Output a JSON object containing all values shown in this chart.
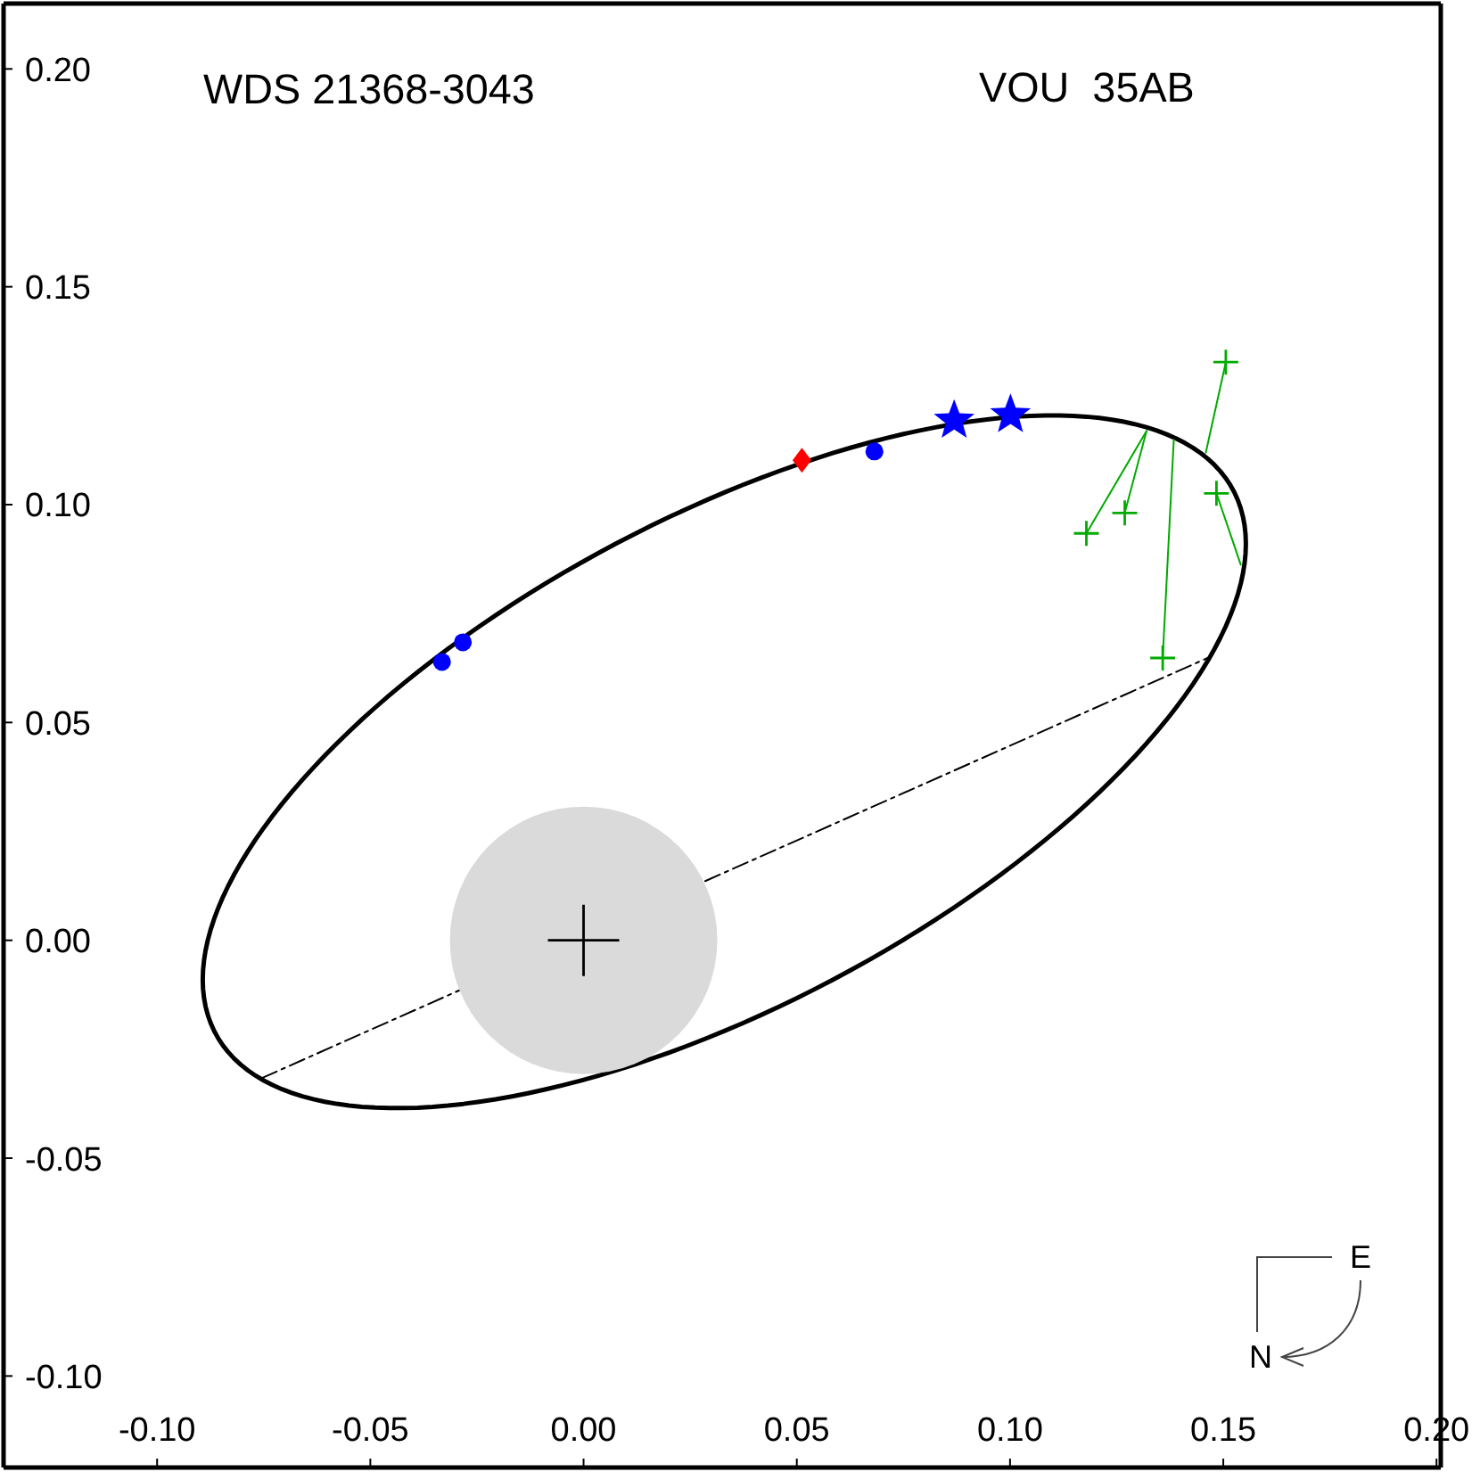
{
  "chart_data": {
    "type": "scatter",
    "title": "WDS 21368-3043",
    "subtitle": "VOU  35AB",
    "annotations": [
      "E",
      "N"
    ],
    "xlim": [
      -0.136,
      0.201
    ],
    "ylim": [
      -0.121,
      0.215
    ],
    "xticks": [
      {
        "value": -0.1,
        "label": "-0.10"
      },
      {
        "value": -0.05,
        "label": "-0.05"
      },
      {
        "value": 0,
        "label": "0.00"
      },
      {
        "value": 0.05,
        "label": "0.05"
      },
      {
        "value": 0.1,
        "label": "0.10"
      },
      {
        "value": 0.15,
        "label": "0.15"
      },
      {
        "value": 0.2,
        "label": "0.20"
      }
    ],
    "yticks": [
      {
        "value": -0.1,
        "label": "-0.10"
      },
      {
        "value": -0.05,
        "label": "-0.05"
      },
      {
        "value": 0,
        "label": "0.00"
      },
      {
        "value": 0.05,
        "label": "0.05"
      },
      {
        "value": 0.1,
        "label": "0.10"
      },
      {
        "value": 0.15,
        "label": "0.15"
      },
      {
        "value": 0.2,
        "label": "0.20"
      }
    ],
    "series": [
      {
        "type": "bubble",
        "color": "#dadada",
        "x": [
          0
        ],
        "values": [
          0
        ],
        "sizes": [
          1
        ]
      },
      {
        "type": "line",
        "color": "#000000",
        "marker": "none",
        "line_style": "dashdot",
        "x": [
          -0.0754,
          0.1463
        ],
        "values": [
          -0.0316,
          0.0648
        ]
      },
      {
        "type": "scatter",
        "color": "#000000",
        "marker": "cross",
        "x": [
          0
        ],
        "values": [
          0
        ]
      },
      {
        "type": "line",
        "color": "#00aa00",
        "marker": "none",
        "line_style": "solid",
        "x": [
          0.1179,
          0.132
        ],
        "values": [
          0.0934,
          0.1169
        ]
      },
      {
        "type": "line",
        "color": "#00aa00",
        "marker": "none",
        "line_style": "solid",
        "x": [
          0.1269,
          0.132
        ],
        "values": [
          0.0981,
          0.1169
        ]
      },
      {
        "type": "line",
        "color": "#00aa00",
        "marker": "none",
        "line_style": "solid",
        "x": [
          0.1358,
          0.1384
        ],
        "values": [
          0.0648,
          0.1149
        ]
      },
      {
        "type": "line",
        "color": "#00aa00",
        "marker": "none",
        "line_style": "solid",
        "x": [
          0.1506,
          0.1459
        ],
        "values": [
          0.1327,
          0.1119
        ]
      },
      {
        "type": "line",
        "color": "#00aa00",
        "marker": "none",
        "line_style": "solid",
        "x": [
          0.1484,
          0.1541
        ],
        "values": [
          0.1026,
          0.0862
        ]
      },
      {
        "type": "scatter",
        "color": "#00aa00",
        "marker": "cross",
        "x": [
          0.1179,
          0.1269,
          0.1358,
          0.1506,
          0.1484
        ],
        "values": [
          0.0934,
          0.0981,
          0.0648,
          0.1327,
          0.1026
        ]
      },
      {
        "type": "scatter",
        "color": "#ff0000",
        "marker": "diamond",
        "x": [
          0.0512
        ],
        "values": [
          0.1102
        ]
      },
      {
        "type": "scatter",
        "color": "#0000ff",
        "marker": "circle",
        "x": [
          -0.0332,
          -0.0283,
          0.0682
        ],
        "values": [
          0.0639,
          0.0684,
          0.1122
        ]
      },
      {
        "type": "scatter",
        "color": "#0000ff",
        "marker": "star",
        "x": [
          0.0869,
          0.1001
        ],
        "values": [
          0.1193,
          0.1206
        ]
      }
    ]
  }
}
